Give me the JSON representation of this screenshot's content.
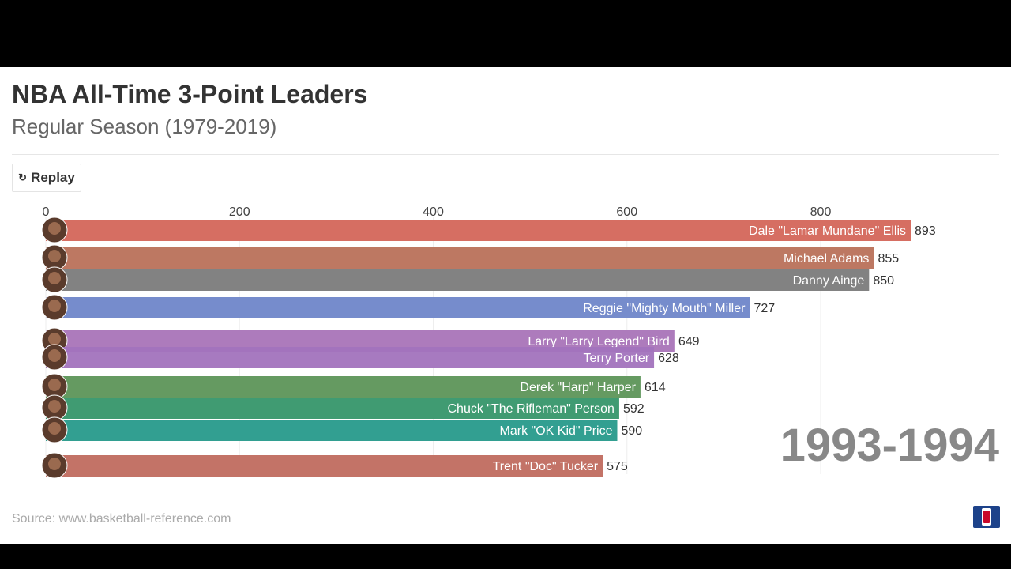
{
  "header": {
    "title": "NBA All-Time 3-Point Leaders",
    "subtitle": "Regular Season (1979-2019)"
  },
  "controls": {
    "replay_label": "Replay",
    "replay_icon": "replay-icon"
  },
  "footer": {
    "source": "Source: www.basketball-reference.com",
    "logo": "NBA"
  },
  "chart_data": {
    "type": "bar",
    "orientation": "horizontal",
    "period": "1993-1994",
    "xlim": [
      0,
      950
    ],
    "xticks": [
      0,
      200,
      400,
      600,
      800
    ],
    "grid": true,
    "bars": [
      {
        "name": "Dale \"Lamar Mundane\" Ellis",
        "value": 893,
        "color": "#d4665a"
      },
      {
        "name": "Michael Adams",
        "value": 855,
        "color": "#b9715a"
      },
      {
        "name": "Danny Ainge",
        "value": 850,
        "color": "#7b7b7b"
      },
      {
        "name": "Reggie \"Mighty Mouth\" Miller",
        "value": 727,
        "color": "#6f86c9"
      },
      {
        "name": "Larry \"Larry Legend\" Bird",
        "value": 649,
        "color": "#a974b8"
      },
      {
        "name": "Terry Porter",
        "value": 628,
        "color": "#a273bd"
      },
      {
        "name": "Derek \"Harp\" Harper",
        "value": 614,
        "color": "#5d9559"
      },
      {
        "name": "Chuck \"The Rifleman\" Person",
        "value": 592,
        "color": "#36966a"
      },
      {
        "name": "Mark \"OK Kid\" Price",
        "value": 590,
        "color": "#279a8b"
      },
      {
        "name": "Trent \"Doc\" Tucker",
        "value": 575,
        "color": "#c06b5f"
      }
    ]
  }
}
